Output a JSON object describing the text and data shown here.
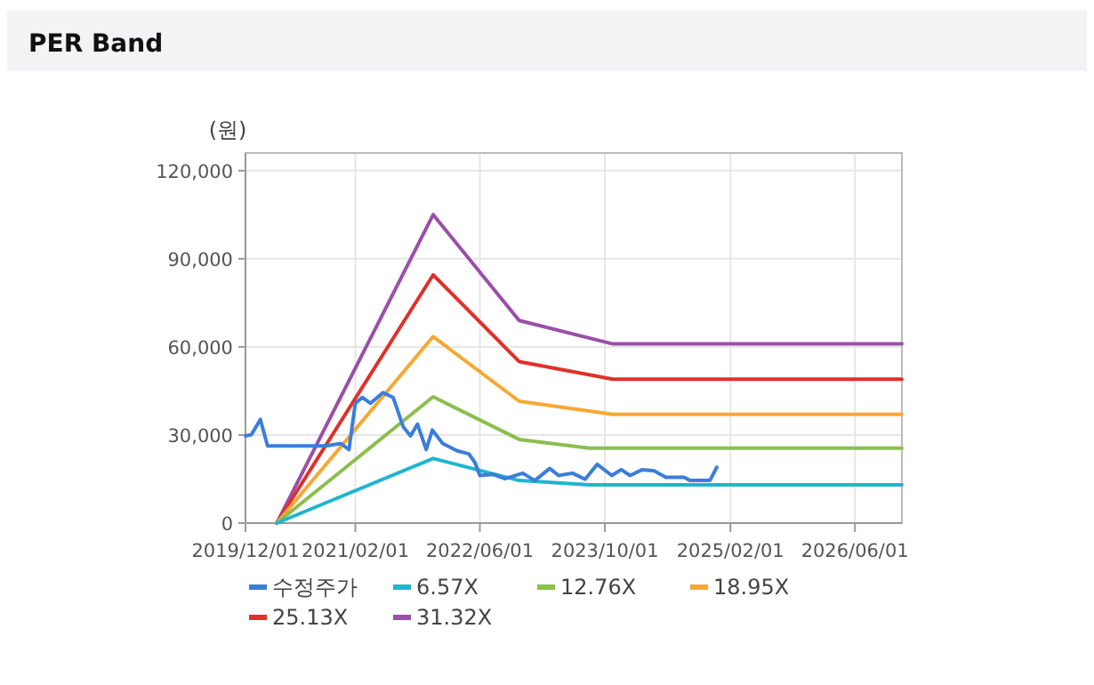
{
  "chart_data": {
    "type": "line",
    "title": "PER Band",
    "ylabel": "(원)",
    "xlim": [
      "2019-12-01",
      "2026-12-01"
    ],
    "xticks": [
      {
        "value": "2019-12-01",
        "label": "2019/12/01"
      },
      {
        "value": "2021-02-01",
        "label": "2021/02/01"
      },
      {
        "value": "2022-06-01",
        "label": "2022/06/01"
      },
      {
        "value": "2023-10-01",
        "label": "2023/10/01"
      },
      {
        "value": "2025-02-01",
        "label": "2025/02/01"
      },
      {
        "value": "2026-06-01",
        "label": "2026/06/01"
      }
    ],
    "ylim": [
      0,
      126000
    ],
    "yticks": [
      0,
      {
        "value": 30000,
        "label": "30,000"
      },
      {
        "value": 60000,
        "label": "60,000"
      },
      {
        "value": 90000,
        "label": "90,000"
      },
      {
        "value": 120000,
        "label": "120,000"
      }
    ],
    "grid": true,
    "legend": "bottom",
    "marker": "none",
    "line_style": "solid",
    "series": [
      {
        "name": "수정주가",
        "color": "#3b7ddb",
        "x": [
          "2019-12-01",
          "2019-12-24",
          "2020-01-28",
          "2020-02-25",
          "2020-10-10",
          "2020-12-07",
          "2021-01-07",
          "2021-02-01",
          "2021-02-28",
          "2021-04-01",
          "2021-05-19",
          "2021-06-28",
          "2021-08-07",
          "2021-09-04",
          "2021-10-01",
          "2021-11-04",
          "2021-11-28",
          "2022-01-07",
          "2022-03-04",
          "2022-04-19",
          "2022-05-13",
          "2022-06-01",
          "2022-07-22",
          "2022-09-07",
          "2022-11-15",
          "2023-01-01",
          "2023-02-28",
          "2023-04-04",
          "2023-05-28",
          "2023-07-16",
          "2023-09-01",
          "2023-10-28",
          "2023-12-04",
          "2024-01-07",
          "2024-02-24",
          "2024-04-10",
          "2024-05-25",
          "2024-08-04",
          "2024-08-28",
          "2024-11-13",
          "2024-12-10"
        ],
        "values": [
          29700,
          30100,
          35300,
          26300,
          26300,
          27100,
          25000,
          40800,
          42800,
          40800,
          44400,
          42800,
          32700,
          29700,
          33700,
          25000,
          31700,
          27100,
          24600,
          23600,
          20600,
          16200,
          16600,
          15100,
          17000,
          14500,
          18600,
          16200,
          17000,
          14900,
          20000,
          16200,
          18200,
          16200,
          18200,
          17800,
          15600,
          15600,
          14500,
          14500,
          19000
        ]
      },
      {
        "name": "6.57X",
        "color": "#1fb5cf",
        "x": [
          "2020-04-01",
          "2021-12-01",
          "2022-11-01",
          "2023-08-01",
          "2026-12-01"
        ],
        "values": [
          0,
          22000,
          14500,
          13000,
          13000
        ]
      },
      {
        "name": "12.76X",
        "color": "#8cbf4e",
        "x": [
          "2020-04-01",
          "2021-12-01",
          "2022-11-01",
          "2023-08-01",
          "2026-12-01"
        ],
        "values": [
          0,
          43000,
          28500,
          25500,
          25500
        ]
      },
      {
        "name": "18.95X",
        "color": "#f8a832",
        "x": [
          "2020-04-01",
          "2021-12-01",
          "2022-11-01",
          "2023-11-01",
          "2026-12-01"
        ],
        "values": [
          0,
          63500,
          41500,
          37000,
          37000
        ]
      },
      {
        "name": "25.13X",
        "color": "#e0302a",
        "x": [
          "2020-04-01",
          "2021-12-01",
          "2022-11-01",
          "2023-11-01",
          "2026-12-01"
        ],
        "values": [
          0,
          84500,
          55000,
          49000,
          49000
        ]
      },
      {
        "name": "31.32X",
        "color": "#9b4fa8",
        "x": [
          "2020-04-01",
          "2021-12-01",
          "2022-11-01",
          "2023-11-01",
          "2026-12-01"
        ],
        "values": [
          0,
          105000,
          69000,
          61000,
          61000
        ]
      }
    ]
  }
}
